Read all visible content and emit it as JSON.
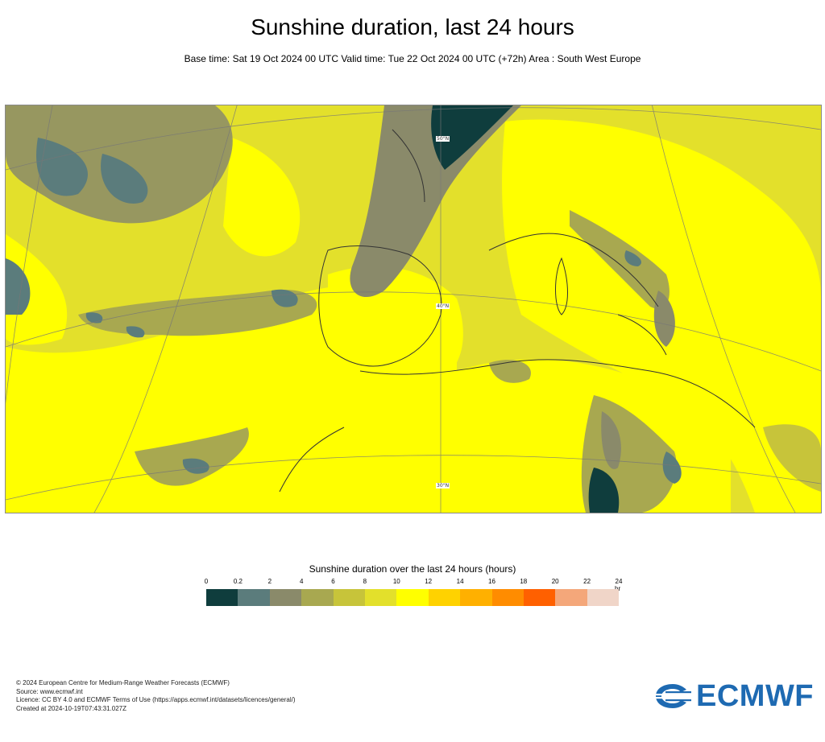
{
  "header": {
    "title": "Sunshine duration, last 24 hours",
    "subtitle": "Base time: Sat 19 Oct 2024 00 UTC Valid time: Tue 22 Oct 2024 00 UTC (+72h) Area : South West Europe"
  },
  "map": {
    "grid_labels": [
      "50°N",
      "40°N",
      "30°N"
    ]
  },
  "legend": {
    "title": "Sunshine duration over the last 24 hours (hours)",
    "ticks": [
      "0",
      "0.2",
      "2",
      "4",
      "6",
      "8",
      "10",
      "12",
      "14",
      "16",
      "18",
      "20",
      "22",
      "24"
    ],
    "unit": "hr",
    "colors": [
      "#0f3d3d",
      "#5b7c7c",
      "#8a8a6a",
      "#a8a850",
      "#c7c43a",
      "#e3e02b",
      "#ffff00",
      "#ffd200",
      "#ffb000",
      "#ff8c00",
      "#ff6000",
      "#f4a77a",
      "#f0d5c8"
    ]
  },
  "footer": {
    "line1": "© 2024 European Centre for Medium-Range Weather Forecasts (ECMWF)",
    "line2": "Source: www.ecmwf.int",
    "line3": "Licence: CC BY 4.0 and ECMWF Terms of Use (https://apps.ecmwf.int/datasets/licences/general/)",
    "line4": "Created at 2024-10-19T07:43:31.027Z"
  },
  "logo": {
    "text": "ECMWF",
    "color": "#1e6ab2"
  }
}
